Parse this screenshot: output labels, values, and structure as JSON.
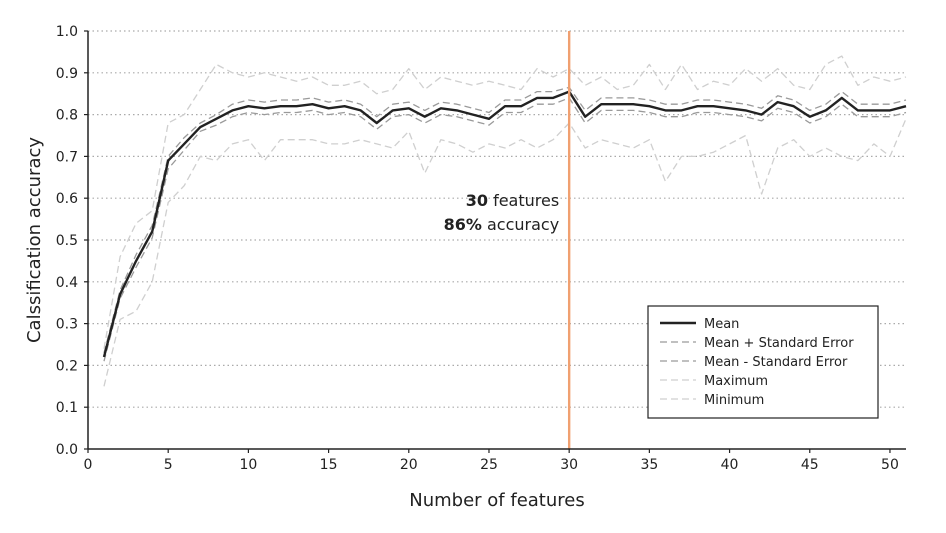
{
  "chart_data": {
    "type": "line",
    "title": "",
    "xlabel": "Number of features",
    "ylabel": "Calssification accuracy",
    "xlim": [
      0,
      51
    ],
    "ylim": [
      0,
      1.0
    ],
    "xticks": [
      0,
      5,
      10,
      15,
      20,
      25,
      30,
      35,
      40,
      45,
      50
    ],
    "yticks": [
      0.0,
      0.1,
      0.2,
      0.3,
      0.4,
      0.5,
      0.6,
      0.7,
      0.8,
      0.9,
      1.0
    ],
    "ytick_labels": [
      "0.0",
      "0.1",
      "0.2",
      "0.3",
      "0.4",
      "0.5",
      "0.6",
      "0.7",
      "0.8",
      "0.9",
      "1.0"
    ],
    "grid": "horizontal dotted",
    "legend_position": "lower-right",
    "colors": {
      "mean": "#222222",
      "se": "#9a9a9a",
      "minmax": "#cfcfcf",
      "marker": "#f0a070",
      "grid": "#aaaaaa"
    },
    "x": [
      1,
      2,
      3,
      4,
      5,
      6,
      7,
      8,
      9,
      10,
      11,
      12,
      13,
      14,
      15,
      16,
      17,
      18,
      19,
      20,
      21,
      22,
      23,
      24,
      25,
      26,
      27,
      28,
      29,
      30,
      31,
      32,
      33,
      34,
      35,
      36,
      37,
      38,
      39,
      40,
      41,
      42,
      43,
      44,
      45,
      46,
      47,
      48,
      49,
      50,
      51
    ],
    "series": [
      {
        "name": "Mean",
        "style": "solid",
        "values": [
          0.22,
          0.37,
          0.45,
          0.52,
          0.69,
          0.73,
          0.77,
          0.79,
          0.81,
          0.82,
          0.815,
          0.82,
          0.82,
          0.825,
          0.815,
          0.82,
          0.81,
          0.78,
          0.81,
          0.815,
          0.795,
          0.815,
          0.81,
          0.8,
          0.79,
          0.82,
          0.82,
          0.84,
          0.84,
          0.855,
          0.795,
          0.825,
          0.825,
          0.825,
          0.82,
          0.81,
          0.81,
          0.82,
          0.82,
          0.815,
          0.81,
          0.8,
          0.83,
          0.82,
          0.795,
          0.81,
          0.84,
          0.81,
          0.81,
          0.81,
          0.82
        ]
      },
      {
        "name": "Mean + Standard Error",
        "style": "dashed",
        "values": [
          0.23,
          0.38,
          0.465,
          0.535,
          0.7,
          0.745,
          0.78,
          0.8,
          0.825,
          0.835,
          0.83,
          0.835,
          0.835,
          0.84,
          0.83,
          0.835,
          0.825,
          0.795,
          0.825,
          0.83,
          0.81,
          0.83,
          0.825,
          0.815,
          0.805,
          0.835,
          0.835,
          0.855,
          0.855,
          0.865,
          0.81,
          0.84,
          0.84,
          0.84,
          0.835,
          0.825,
          0.825,
          0.835,
          0.835,
          0.83,
          0.825,
          0.815,
          0.845,
          0.835,
          0.81,
          0.825,
          0.855,
          0.825,
          0.825,
          0.825,
          0.835
        ]
      },
      {
        "name": "Mean - Standard Error",
        "style": "dashed",
        "values": [
          0.21,
          0.36,
          0.435,
          0.505,
          0.67,
          0.715,
          0.76,
          0.775,
          0.795,
          0.805,
          0.8,
          0.805,
          0.805,
          0.81,
          0.8,
          0.805,
          0.795,
          0.765,
          0.795,
          0.8,
          0.78,
          0.8,
          0.795,
          0.785,
          0.775,
          0.805,
          0.805,
          0.825,
          0.825,
          0.84,
          0.78,
          0.81,
          0.81,
          0.81,
          0.805,
          0.795,
          0.795,
          0.805,
          0.805,
          0.8,
          0.795,
          0.785,
          0.815,
          0.805,
          0.78,
          0.795,
          0.825,
          0.795,
          0.795,
          0.795,
          0.805
        ]
      },
      {
        "name": "Maximum",
        "style": "dashed",
        "values": [
          0.24,
          0.46,
          0.54,
          0.57,
          0.78,
          0.8,
          0.86,
          0.92,
          0.9,
          0.89,
          0.9,
          0.89,
          0.88,
          0.89,
          0.87,
          0.87,
          0.88,
          0.85,
          0.86,
          0.91,
          0.86,
          0.89,
          0.88,
          0.87,
          0.88,
          0.87,
          0.86,
          0.91,
          0.89,
          0.91,
          0.87,
          0.89,
          0.86,
          0.87,
          0.92,
          0.86,
          0.92,
          0.86,
          0.88,
          0.87,
          0.91,
          0.88,
          0.91,
          0.87,
          0.86,
          0.92,
          0.94,
          0.87,
          0.89,
          0.88,
          0.89
        ]
      },
      {
        "name": "Minimum",
        "style": "dashed",
        "values": [
          0.15,
          0.31,
          0.33,
          0.4,
          0.59,
          0.63,
          0.7,
          0.69,
          0.73,
          0.74,
          0.69,
          0.74,
          0.74,
          0.74,
          0.73,
          0.73,
          0.74,
          0.73,
          0.72,
          0.76,
          0.66,
          0.74,
          0.73,
          0.71,
          0.73,
          0.72,
          0.74,
          0.72,
          0.74,
          0.78,
          0.72,
          0.74,
          0.73,
          0.72,
          0.74,
          0.64,
          0.7,
          0.7,
          0.71,
          0.73,
          0.75,
          0.61,
          0.72,
          0.74,
          0.7,
          0.72,
          0.7,
          0.69,
          0.73,
          0.7,
          0.79
        ]
      }
    ],
    "annotation": {
      "x": 30,
      "line1_bold": "30",
      "line1_rest": " features",
      "line2_bold": "86%",
      "line2_rest": " accuracy"
    }
  }
}
